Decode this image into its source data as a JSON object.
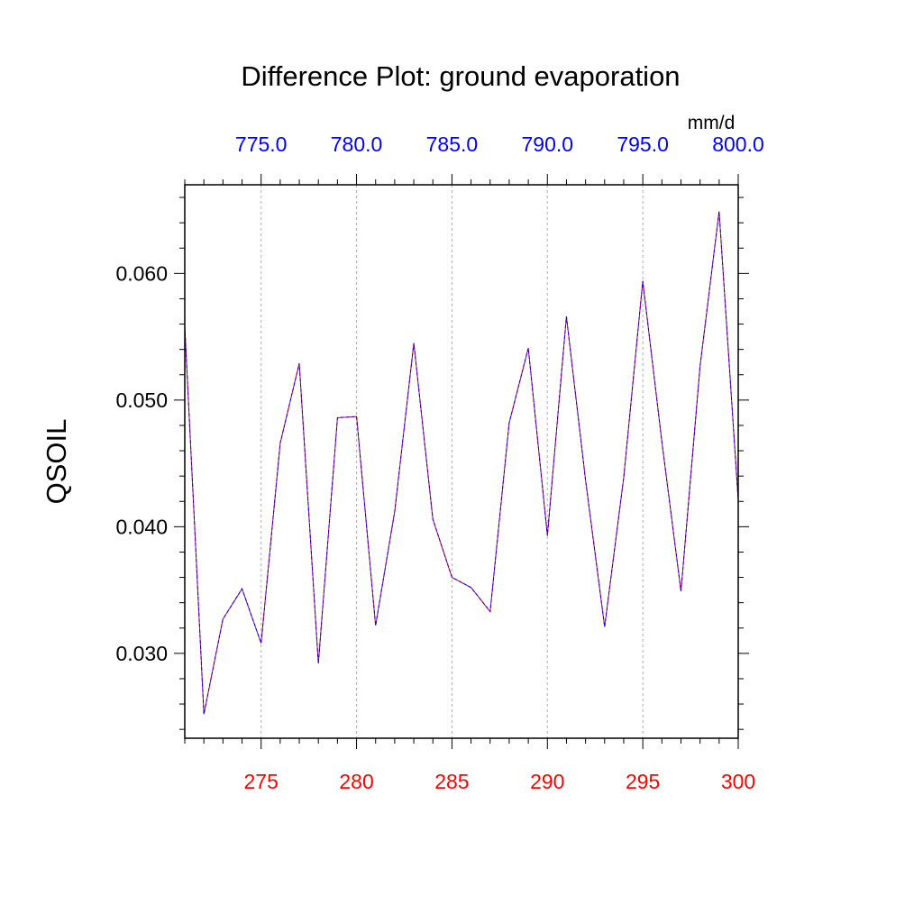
{
  "chart_data": {
    "type": "line",
    "title": "Difference Plot: ground evaporation",
    "units": "mm/d",
    "ylabel": "QSOIL",
    "xlim": [
      271,
      300
    ],
    "ylim": [
      0.0233,
      0.067
    ],
    "x_ticks_bottom": [
      "275",
      "280",
      "285",
      "290",
      "295",
      "300"
    ],
    "x_ticks_bottom_values": [
      275,
      280,
      285,
      290,
      295,
      300
    ],
    "x_ticks_top": [
      "775.0",
      "780.0",
      "785.0",
      "790.0",
      "795.0",
      "800.0"
    ],
    "y_ticks": [
      "0.030",
      "0.040",
      "0.050",
      "0.060"
    ],
    "y_ticks_values": [
      0.03,
      0.04,
      0.05,
      0.06
    ],
    "grid": "vertical dashed at major x ticks",
    "colors": {
      "bottom_axis_labels": "#ff0000",
      "top_axis_labels": "#0000ff",
      "series_a": "#ff0000",
      "series_b": "#0000ff"
    },
    "series": [
      {
        "x": [
          271,
          272,
          273,
          274,
          275,
          276,
          277,
          278,
          279,
          280,
          281,
          282,
          283,
          284,
          285,
          286,
          287,
          288,
          289,
          290,
          291,
          292,
          293,
          294,
          295,
          296,
          297,
          298,
          299,
          300
        ],
        "values": [
          0.0558,
          0.0252,
          0.0327,
          0.0351,
          0.0308,
          0.0466,
          0.0529,
          0.0292,
          0.0486,
          0.0487,
          0.0322,
          0.0412,
          0.0545,
          0.0406,
          0.036,
          0.0352,
          0.0333,
          0.0482,
          0.0541,
          0.0393,
          0.0566,
          0.0437,
          0.0321,
          0.0439,
          0.0594,
          0.0467,
          0.0349,
          0.0527,
          0.0649,
          0.0421
        ]
      }
    ]
  }
}
